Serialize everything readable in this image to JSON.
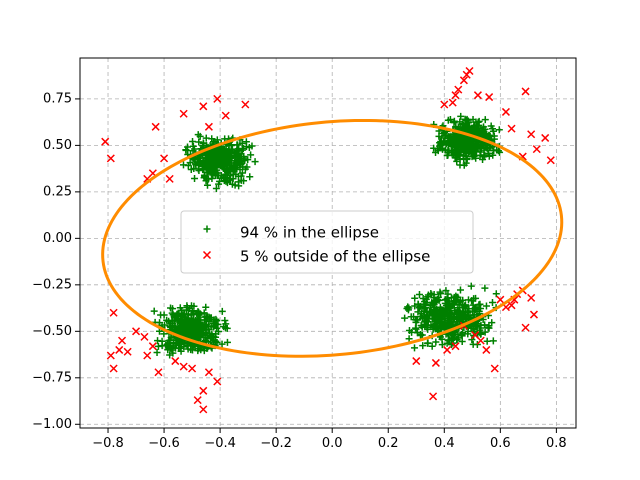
{
  "chart_data": {
    "type": "scatter",
    "title": "",
    "xlabel": "",
    "ylabel": "",
    "xlim": [
      -0.9,
      0.87
    ],
    "ylim": [
      -1.02,
      0.97
    ],
    "xticks": [
      -0.8,
      -0.6,
      -0.4,
      -0.2,
      0.0,
      0.2,
      0.4,
      0.6,
      0.8
    ],
    "xtick_labels": [
      "−0.8",
      "−0.6",
      "−0.4",
      "−0.2",
      "0.0",
      "0.2",
      "0.4",
      "0.6",
      "0.8"
    ],
    "yticks": [
      -1.0,
      -0.75,
      -0.5,
      -0.25,
      0.0,
      0.25,
      0.5,
      0.75
    ],
    "ytick_labels": [
      "−1.00",
      "−0.75",
      "−0.50",
      "−0.25",
      "0.00",
      "0.25",
      "0.50",
      "0.75"
    ],
    "grid": true,
    "legend_position": "center",
    "ellipse": {
      "center": [
        0.0,
        0.0
      ],
      "semi_major": 0.83,
      "semi_minor": 0.62,
      "angle_deg": 14,
      "color": "#ff8c00"
    },
    "series": [
      {
        "name": "94 % in the ellipse",
        "marker": "+",
        "color": "#008000",
        "clusters": [
          {
            "x_range": [
              -0.55,
              -0.26
            ],
            "y_range": [
              0.26,
              0.58
            ]
          },
          {
            "x_range": [
              0.34,
              0.62
            ],
            "y_range": [
              0.37,
              0.68
            ]
          },
          {
            "x_range": [
              -0.66,
              -0.35
            ],
            "y_range": [
              -0.66,
              -0.33
            ]
          },
          {
            "x_range": [
              0.22,
              0.62
            ],
            "y_range": [
              -0.63,
              -0.23
            ]
          }
        ]
      },
      {
        "name": "5 % outside of the ellipse",
        "marker": "x",
        "color": "#ff0000",
        "points": [
          [
            -0.81,
            0.52
          ],
          [
            -0.79,
            0.43
          ],
          [
            -0.66,
            0.32
          ],
          [
            -0.64,
            0.35
          ],
          [
            -0.63,
            0.6
          ],
          [
            -0.6,
            0.43
          ],
          [
            -0.58,
            0.32
          ],
          [
            -0.53,
            0.67
          ],
          [
            -0.46,
            0.71
          ],
          [
            -0.44,
            0.6
          ],
          [
            -0.41,
            0.75
          ],
          [
            -0.38,
            0.66
          ],
          [
            -0.31,
            0.72
          ],
          [
            -0.78,
            -0.4
          ],
          [
            -0.79,
            -0.63
          ],
          [
            -0.78,
            -0.7
          ],
          [
            -0.75,
            -0.55
          ],
          [
            -0.76,
            -0.6
          ],
          [
            -0.73,
            -0.61
          ],
          [
            -0.7,
            -0.5
          ],
          [
            -0.67,
            -0.53
          ],
          [
            -0.66,
            -0.63
          ],
          [
            -0.64,
            -0.58
          ],
          [
            -0.62,
            -0.72
          ],
          [
            -0.56,
            -0.66
          ],
          [
            -0.53,
            -0.69
          ],
          [
            -0.5,
            -0.7
          ],
          [
            -0.48,
            -0.87
          ],
          [
            -0.46,
            -0.82
          ],
          [
            -0.46,
            -0.92
          ],
          [
            -0.44,
            -0.72
          ],
          [
            -0.41,
            -0.77
          ],
          [
            0.4,
            0.72
          ],
          [
            0.43,
            0.73
          ],
          [
            0.44,
            0.77
          ],
          [
            0.45,
            0.8
          ],
          [
            0.47,
            0.85
          ],
          [
            0.48,
            0.88
          ],
          [
            0.49,
            0.9
          ],
          [
            0.52,
            0.77
          ],
          [
            0.56,
            0.76
          ],
          [
            0.62,
            0.68
          ],
          [
            0.64,
            0.59
          ],
          [
            0.69,
            0.79
          ],
          [
            0.71,
            0.56
          ],
          [
            0.73,
            0.48
          ],
          [
            0.76,
            0.54
          ],
          [
            0.78,
            0.42
          ],
          [
            0.68,
            0.44
          ],
          [
            0.3,
            -0.66
          ],
          [
            0.36,
            -0.85
          ],
          [
            0.37,
            -0.67
          ],
          [
            0.41,
            -0.6
          ],
          [
            0.44,
            -0.58
          ],
          [
            0.47,
            -0.47
          ],
          [
            0.51,
            -0.52
          ],
          [
            0.53,
            -0.55
          ],
          [
            0.55,
            -0.6
          ],
          [
            0.58,
            -0.7
          ],
          [
            0.6,
            -0.33
          ],
          [
            0.62,
            -0.37
          ],
          [
            0.65,
            -0.33
          ],
          [
            0.66,
            -0.3
          ],
          [
            0.68,
            -0.28
          ],
          [
            0.69,
            -0.48
          ],
          [
            0.71,
            -0.32
          ],
          [
            0.72,
            -0.41
          ],
          [
            0.64,
            -0.36
          ]
        ]
      }
    ]
  },
  "colors": {
    "inside": "#008000",
    "outside": "#ff0000",
    "ellipse": "#ff8c00",
    "grid": "#b0b0b0"
  }
}
